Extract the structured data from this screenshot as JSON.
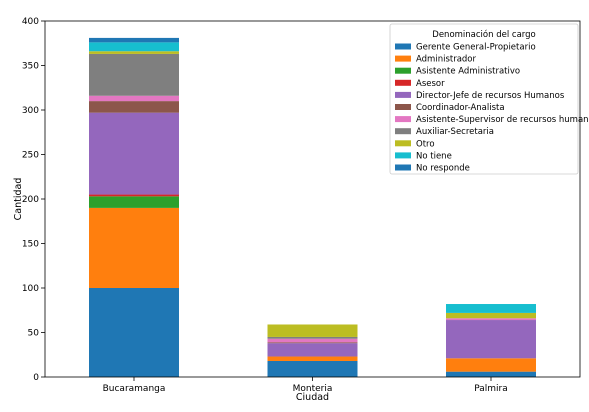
{
  "chart_data": {
    "type": "bar",
    "stacked": true,
    "categories": [
      "Bucaramanga",
      "Monteria",
      "Palmira"
    ],
    "xlabel": "Ciudad",
    "ylabel": "Cantidad",
    "ylim": [
      0,
      400
    ],
    "yticks": [
      0,
      50,
      100,
      150,
      200,
      250,
      300,
      350,
      400
    ],
    "grid": false,
    "legend": {
      "title": "Denominación del cargo",
      "placement": "top-right"
    },
    "series": [
      {
        "name": "Gerente General-Propietario",
        "color": "#1f77b4",
        "values": [
          100,
          18,
          6
        ]
      },
      {
        "name": "Administrador",
        "color": "#ff7f0e",
        "values": [
          90,
          5,
          15
        ]
      },
      {
        "name": "Asistente Administrativo",
        "color": "#2ca02c",
        "values": [
          13,
          0,
          0
        ]
      },
      {
        "name": "Asesor",
        "color": "#d62728",
        "values": [
          2,
          0,
          0
        ]
      },
      {
        "name": "Director-Jefe de recursos Humanos",
        "color": "#9467bd",
        "values": [
          92,
          15,
          43
        ]
      },
      {
        "name": "Coordinador-Analista",
        "color": "#8c564b",
        "values": [
          13,
          1,
          0
        ]
      },
      {
        "name": "Asistente-Supervisor de recursos humanos",
        "color": "#e377c2",
        "values": [
          6,
          4,
          2
        ]
      },
      {
        "name": "Auxiliar-Secretaria",
        "color": "#7f7f7f",
        "values": [
          47,
          2,
          0
        ]
      },
      {
        "name": "Otro",
        "color": "#bcbd22",
        "values": [
          3,
          14,
          6
        ]
      },
      {
        "name": "No tiene",
        "color": "#17becf",
        "values": [
          10,
          0,
          10
        ]
      },
      {
        "name": "No responde",
        "color": "#1f77b4",
        "values": [
          5,
          0,
          0
        ]
      }
    ]
  }
}
